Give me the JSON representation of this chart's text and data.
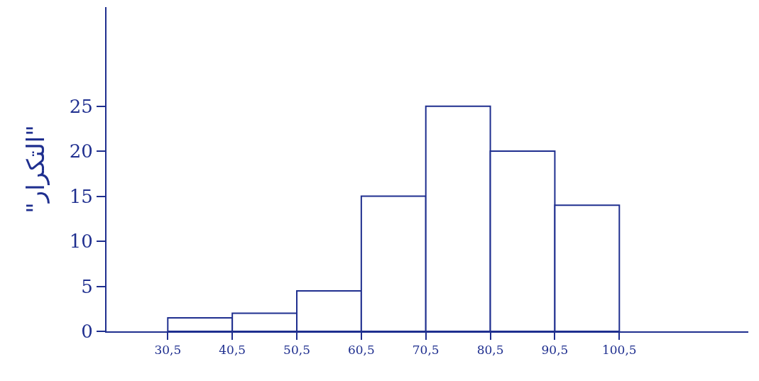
{
  "chart_data": {
    "type": "histogram",
    "ylabel": "\"التكرار\"",
    "bins": [
      30.5,
      40.5,
      50.5,
      60.5,
      70.5,
      80.5,
      90.5,
      100.5
    ],
    "values": [
      1.5,
      2,
      4.5,
      15,
      25,
      20,
      14
    ],
    "color": "#ffffff",
    "xlim": [
      21,
      120.5
    ],
    "xticks": [
      {
        "value": 30.5,
        "label": "30,5"
      },
      {
        "value": 40.5,
        "label": "40,5"
      },
      {
        "value": 50.5,
        "label": "50,5"
      },
      {
        "value": 60.5,
        "label": "60,5"
      },
      {
        "value": 70.5,
        "label": "70,5"
      },
      {
        "value": 80.5,
        "label": "80,5"
      },
      {
        "value": 90.5,
        "label": "90,5"
      },
      {
        "value": 100.5,
        "label": "100,5"
      }
    ],
    "ylim": [
      0,
      36
    ],
    "yticks": [
      0,
      5,
      10,
      15,
      20,
      25
    ],
    "grid": false
  }
}
